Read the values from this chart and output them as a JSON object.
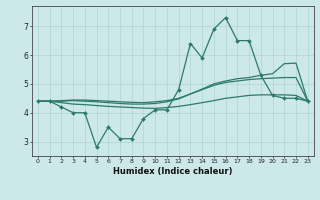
{
  "xlabel": "Humidex (Indice chaleur)",
  "x": [
    0,
    1,
    2,
    3,
    4,
    5,
    6,
    7,
    8,
    9,
    10,
    11,
    12,
    13,
    14,
    15,
    16,
    17,
    18,
    19,
    20,
    21,
    22,
    23
  ],
  "y_main": [
    4.4,
    4.4,
    4.2,
    4.0,
    4.0,
    2.8,
    3.5,
    3.1,
    3.1,
    3.8,
    4.1,
    4.1,
    4.8,
    6.4,
    5.9,
    6.9,
    7.3,
    6.5,
    6.5,
    5.3,
    4.6,
    4.5,
    4.5,
    4.4
  ],
  "y_line1": [
    4.4,
    4.4,
    4.35,
    4.3,
    4.28,
    4.25,
    4.22,
    4.2,
    4.18,
    4.16,
    4.15,
    4.18,
    4.22,
    4.28,
    4.35,
    4.42,
    4.5,
    4.55,
    4.6,
    4.62,
    4.62,
    4.62,
    4.6,
    4.4
  ],
  "y_line2": [
    4.4,
    4.4,
    4.42,
    4.44,
    4.44,
    4.42,
    4.4,
    4.38,
    4.36,
    4.35,
    4.38,
    4.42,
    4.5,
    4.65,
    4.8,
    4.95,
    5.05,
    5.1,
    5.15,
    5.18,
    5.2,
    5.22,
    5.22,
    4.4
  ],
  "y_line3": [
    4.4,
    4.4,
    4.4,
    4.42,
    4.4,
    4.38,
    4.35,
    4.32,
    4.3,
    4.3,
    4.32,
    4.38,
    4.48,
    4.65,
    4.82,
    5.0,
    5.1,
    5.18,
    5.22,
    5.3,
    5.35,
    5.7,
    5.72,
    4.4
  ],
  "line_color": "#2d7a6a",
  "bg_color": "#cce8e8",
  "grid_color_major": "#afd4d4",
  "grid_color_minor": "#c0dede",
  "ylim": [
    2.5,
    7.7
  ],
  "yticks": [
    3,
    4,
    5,
    6,
    7
  ]
}
